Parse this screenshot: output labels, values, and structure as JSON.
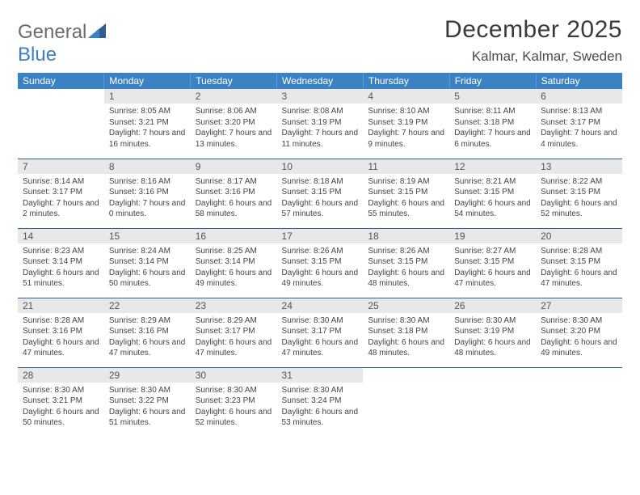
{
  "logo": {
    "word1": "General",
    "word2": "Blue"
  },
  "title": "December 2025",
  "location": "Kalmar, Kalmar, Sweden",
  "colors": {
    "header_bg": "#3b82c4",
    "header_text": "#ffffff",
    "daynum_bg": "#e8e8e8",
    "week_border": "#2f5f8a",
    "logo_gray": "#6b6b6b",
    "logo_blue": "#3b7fc4",
    "body_text": "#444444"
  },
  "typography": {
    "title_fontsize": 30,
    "location_fontsize": 17,
    "dayheader_fontsize": 12,
    "daynum_fontsize": 12,
    "body_fontsize": 10,
    "font_family": "Arial"
  },
  "day_headers": [
    "Sunday",
    "Monday",
    "Tuesday",
    "Wednesday",
    "Thursday",
    "Friday",
    "Saturday"
  ],
  "weeks": [
    [
      {
        "n": "",
        "sunrise": "",
        "sunset": "",
        "daylight": ""
      },
      {
        "n": "1",
        "sunrise": "Sunrise: 8:05 AM",
        "sunset": "Sunset: 3:21 PM",
        "daylight": "Daylight: 7 hours and 16 minutes."
      },
      {
        "n": "2",
        "sunrise": "Sunrise: 8:06 AM",
        "sunset": "Sunset: 3:20 PM",
        "daylight": "Daylight: 7 hours and 13 minutes."
      },
      {
        "n": "3",
        "sunrise": "Sunrise: 8:08 AM",
        "sunset": "Sunset: 3:19 PM",
        "daylight": "Daylight: 7 hours and 11 minutes."
      },
      {
        "n": "4",
        "sunrise": "Sunrise: 8:10 AM",
        "sunset": "Sunset: 3:19 PM",
        "daylight": "Daylight: 7 hours and 9 minutes."
      },
      {
        "n": "5",
        "sunrise": "Sunrise: 8:11 AM",
        "sunset": "Sunset: 3:18 PM",
        "daylight": "Daylight: 7 hours and 6 minutes."
      },
      {
        "n": "6",
        "sunrise": "Sunrise: 8:13 AM",
        "sunset": "Sunset: 3:17 PM",
        "daylight": "Daylight: 7 hours and 4 minutes."
      }
    ],
    [
      {
        "n": "7",
        "sunrise": "Sunrise: 8:14 AM",
        "sunset": "Sunset: 3:17 PM",
        "daylight": "Daylight: 7 hours and 2 minutes."
      },
      {
        "n": "8",
        "sunrise": "Sunrise: 8:16 AM",
        "sunset": "Sunset: 3:16 PM",
        "daylight": "Daylight: 7 hours and 0 minutes."
      },
      {
        "n": "9",
        "sunrise": "Sunrise: 8:17 AM",
        "sunset": "Sunset: 3:16 PM",
        "daylight": "Daylight: 6 hours and 58 minutes."
      },
      {
        "n": "10",
        "sunrise": "Sunrise: 8:18 AM",
        "sunset": "Sunset: 3:15 PM",
        "daylight": "Daylight: 6 hours and 57 minutes."
      },
      {
        "n": "11",
        "sunrise": "Sunrise: 8:19 AM",
        "sunset": "Sunset: 3:15 PM",
        "daylight": "Daylight: 6 hours and 55 minutes."
      },
      {
        "n": "12",
        "sunrise": "Sunrise: 8:21 AM",
        "sunset": "Sunset: 3:15 PM",
        "daylight": "Daylight: 6 hours and 54 minutes."
      },
      {
        "n": "13",
        "sunrise": "Sunrise: 8:22 AM",
        "sunset": "Sunset: 3:15 PM",
        "daylight": "Daylight: 6 hours and 52 minutes."
      }
    ],
    [
      {
        "n": "14",
        "sunrise": "Sunrise: 8:23 AM",
        "sunset": "Sunset: 3:14 PM",
        "daylight": "Daylight: 6 hours and 51 minutes."
      },
      {
        "n": "15",
        "sunrise": "Sunrise: 8:24 AM",
        "sunset": "Sunset: 3:14 PM",
        "daylight": "Daylight: 6 hours and 50 minutes."
      },
      {
        "n": "16",
        "sunrise": "Sunrise: 8:25 AM",
        "sunset": "Sunset: 3:14 PM",
        "daylight": "Daylight: 6 hours and 49 minutes."
      },
      {
        "n": "17",
        "sunrise": "Sunrise: 8:26 AM",
        "sunset": "Sunset: 3:15 PM",
        "daylight": "Daylight: 6 hours and 49 minutes."
      },
      {
        "n": "18",
        "sunrise": "Sunrise: 8:26 AM",
        "sunset": "Sunset: 3:15 PM",
        "daylight": "Daylight: 6 hours and 48 minutes."
      },
      {
        "n": "19",
        "sunrise": "Sunrise: 8:27 AM",
        "sunset": "Sunset: 3:15 PM",
        "daylight": "Daylight: 6 hours and 47 minutes."
      },
      {
        "n": "20",
        "sunrise": "Sunrise: 8:28 AM",
        "sunset": "Sunset: 3:15 PM",
        "daylight": "Daylight: 6 hours and 47 minutes."
      }
    ],
    [
      {
        "n": "21",
        "sunrise": "Sunrise: 8:28 AM",
        "sunset": "Sunset: 3:16 PM",
        "daylight": "Daylight: 6 hours and 47 minutes."
      },
      {
        "n": "22",
        "sunrise": "Sunrise: 8:29 AM",
        "sunset": "Sunset: 3:16 PM",
        "daylight": "Daylight: 6 hours and 47 minutes."
      },
      {
        "n": "23",
        "sunrise": "Sunrise: 8:29 AM",
        "sunset": "Sunset: 3:17 PM",
        "daylight": "Daylight: 6 hours and 47 minutes."
      },
      {
        "n": "24",
        "sunrise": "Sunrise: 8:30 AM",
        "sunset": "Sunset: 3:17 PM",
        "daylight": "Daylight: 6 hours and 47 minutes."
      },
      {
        "n": "25",
        "sunrise": "Sunrise: 8:30 AM",
        "sunset": "Sunset: 3:18 PM",
        "daylight": "Daylight: 6 hours and 48 minutes."
      },
      {
        "n": "26",
        "sunrise": "Sunrise: 8:30 AM",
        "sunset": "Sunset: 3:19 PM",
        "daylight": "Daylight: 6 hours and 48 minutes."
      },
      {
        "n": "27",
        "sunrise": "Sunrise: 8:30 AM",
        "sunset": "Sunset: 3:20 PM",
        "daylight": "Daylight: 6 hours and 49 minutes."
      }
    ],
    [
      {
        "n": "28",
        "sunrise": "Sunrise: 8:30 AM",
        "sunset": "Sunset: 3:21 PM",
        "daylight": "Daylight: 6 hours and 50 minutes."
      },
      {
        "n": "29",
        "sunrise": "Sunrise: 8:30 AM",
        "sunset": "Sunset: 3:22 PM",
        "daylight": "Daylight: 6 hours and 51 minutes."
      },
      {
        "n": "30",
        "sunrise": "Sunrise: 8:30 AM",
        "sunset": "Sunset: 3:23 PM",
        "daylight": "Daylight: 6 hours and 52 minutes."
      },
      {
        "n": "31",
        "sunrise": "Sunrise: 8:30 AM",
        "sunset": "Sunset: 3:24 PM",
        "daylight": "Daylight: 6 hours and 53 minutes."
      },
      {
        "n": "",
        "sunrise": "",
        "sunset": "",
        "daylight": ""
      },
      {
        "n": "",
        "sunrise": "",
        "sunset": "",
        "daylight": ""
      },
      {
        "n": "",
        "sunrise": "",
        "sunset": "",
        "daylight": ""
      }
    ]
  ]
}
